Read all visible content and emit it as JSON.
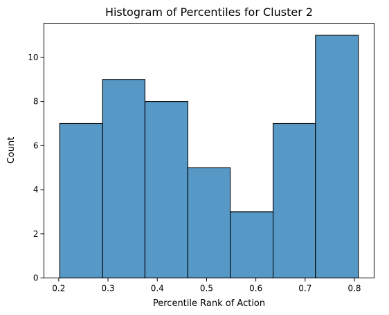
{
  "chart_data": {
    "type": "bar",
    "title": "Histogram of Percentiles for Cluster 2",
    "xlabel": "Percentile Rank of Action",
    "ylabel": "Count",
    "bin_edges": [
      0.202,
      0.289,
      0.375,
      0.462,
      0.548,
      0.635,
      0.721,
      0.808
    ],
    "values": [
      7,
      9,
      8,
      5,
      3,
      7,
      11
    ],
    "xlim": [
      0.17,
      0.84
    ],
    "ylim": [
      0,
      11.55
    ],
    "x_ticks": [
      0.2,
      0.3,
      0.4,
      0.5,
      0.6,
      0.7,
      0.8
    ],
    "x_tick_labels": [
      "0.2",
      "0.3",
      "0.4",
      "0.5",
      "0.6",
      "0.7",
      "0.8"
    ],
    "y_ticks": [
      0,
      2,
      4,
      6,
      8,
      10
    ],
    "y_tick_labels": [
      "0",
      "2",
      "4",
      "6",
      "8",
      "10"
    ],
    "bar_color": "#5699c6",
    "edge_color": "#000000",
    "grid": false
  }
}
